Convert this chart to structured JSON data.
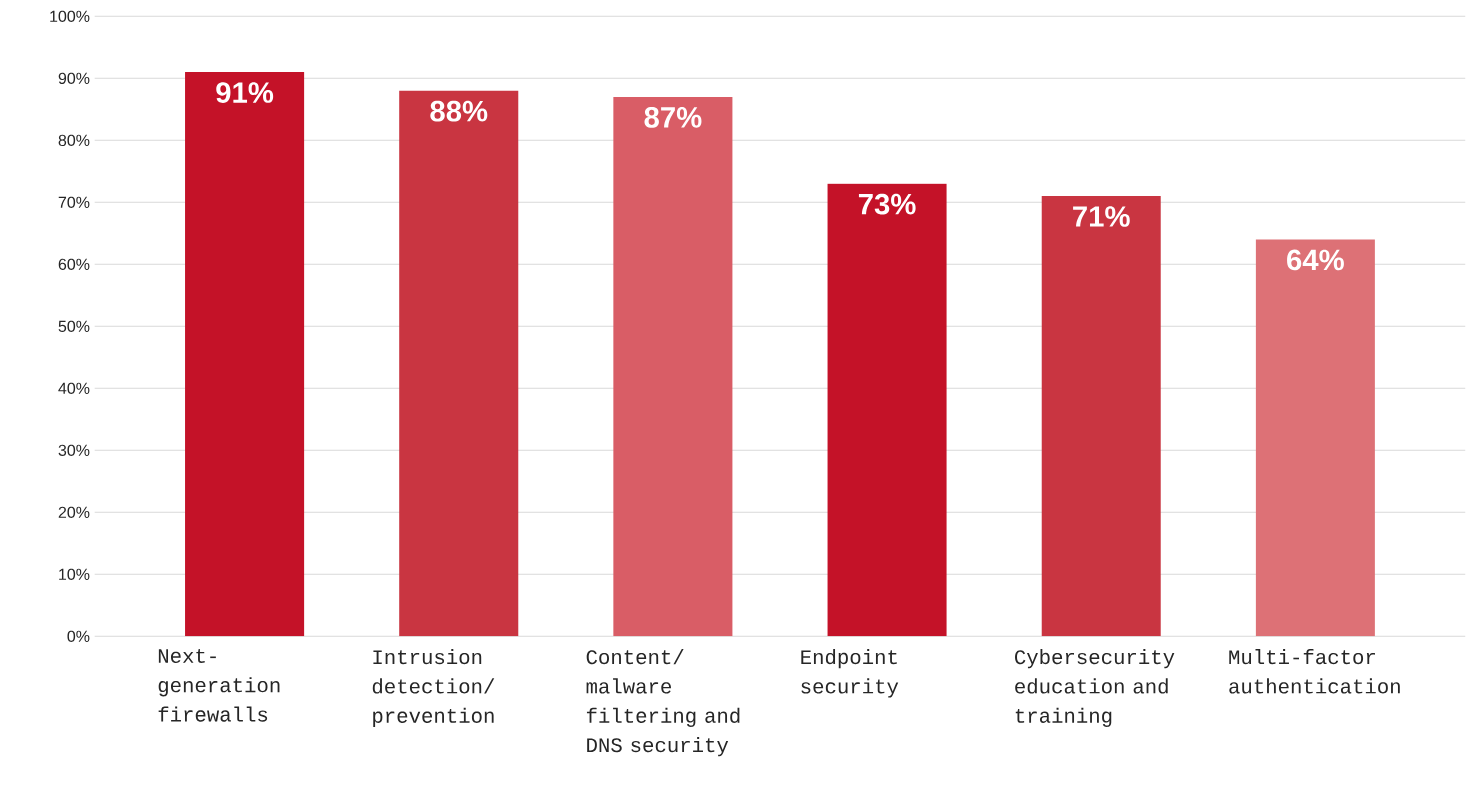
{
  "chart_data": {
    "type": "bar",
    "categories": [
      "Next-generation firewalls",
      "Intrusion detection/ prevention",
      "Content/ malware filtering and DNS security",
      "Endpoint security",
      "Cybersecurity education and training",
      "Multi-factor authentication"
    ],
    "values": [
      91,
      88,
      87,
      73,
      71,
      64
    ],
    "value_labels": [
      "91%",
      "88%",
      "87%",
      "73%",
      "71%",
      "64%"
    ],
    "colors": [
      "#c41228",
      "#c93541",
      "#d95d66",
      "#c41228",
      "#c93541",
      "#dd7176"
    ],
    "ylim": [
      0,
      100
    ],
    "yticks": [
      {
        "value": 0,
        "label": "0%"
      },
      {
        "value": 10,
        "label": "10%"
      },
      {
        "value": 20,
        "label": "20%"
      },
      {
        "value": 30,
        "label": "30%"
      },
      {
        "value": 40,
        "label": "40%"
      },
      {
        "value": 50,
        "label": "50%"
      },
      {
        "value": 60,
        "label": "60%"
      },
      {
        "value": 70,
        "label": "70%"
      },
      {
        "value": 80,
        "label": "80%"
      },
      {
        "value": 90,
        "label": "90%"
      },
      {
        "value": 100,
        "label": "100%"
      }
    ],
    "grid": "y"
  }
}
